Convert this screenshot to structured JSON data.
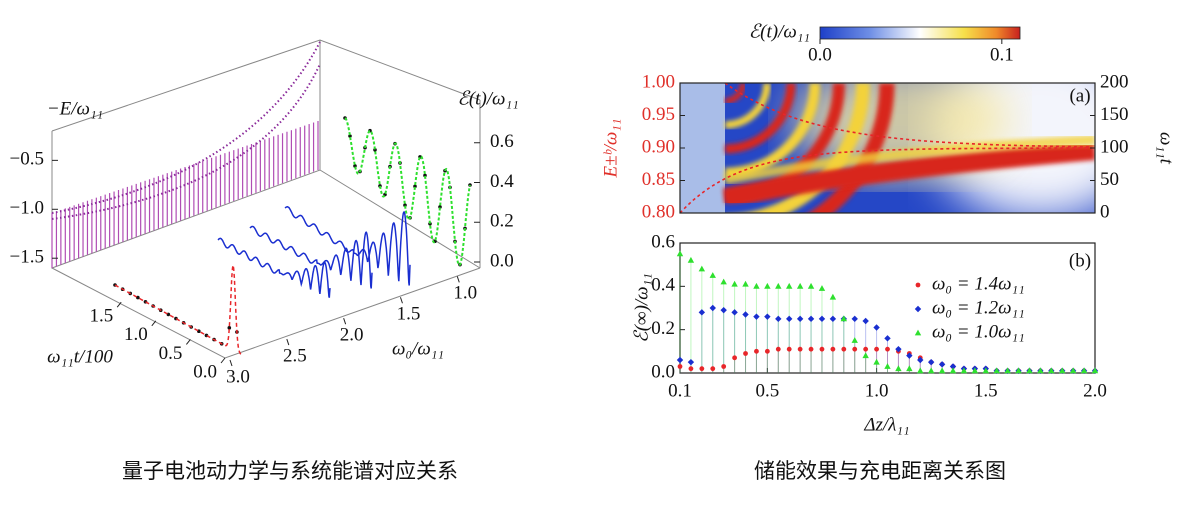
{
  "captions": [
    "量子电池动力学与系统能谱对应关系",
    "储能效果与充电距离关系图"
  ],
  "chart_data": [
    {
      "type": "surface-3d",
      "z_label": "−E/ω₁₁",
      "z2_label": "ℰ(t)/ω₁₁",
      "x_label": "ω₁₁t/100",
      "y_label": "ω₀/ω₁₁",
      "xlim": [
        0,
        2.5
      ],
      "xticks": [
        {
          "value": 0,
          "label": "0.0"
        },
        0.5,
        {
          "value": 1,
          "label": "1.0"
        },
        1.5
      ],
      "ylim": [
        0.8,
        3.0
      ],
      "yticks": [
        {
          "value": 1,
          "label": "1.0"
        },
        1.5,
        {
          "value": 2,
          "label": "2.0"
        },
        2.5,
        {
          "value": 3,
          "label": "3.0"
        }
      ],
      "zlim": [
        -1.6,
        -0.2
      ],
      "zticks": [
        {
          "value": -1.5,
          "label": "−1.5"
        },
        {
          "value": -1,
          "label": "−1.0"
        },
        {
          "value": -0.5,
          "label": "−0.5"
        }
      ],
      "z2lim": [
        0,
        0.8
      ],
      "z2ticks": [
        {
          "value": 0,
          "label": "0.0"
        },
        0.2,
        0.4,
        0.6
      ]
    },
    {
      "type": "heatmap",
      "panel_label": "(a)",
      "y_label": "E±ᵇ/ω₁₁",
      "y2_label": "ω₁₁t",
      "colorbar_label": "ℰ(t)/ω₁₁",
      "clim": [
        0,
        0.11
      ],
      "cticks": [
        {
          "value": 0,
          "label": "0.0"
        },
        0.1
      ],
      "ylim": [
        0.8,
        1.0
      ],
      "yticks": [
        {
          "value": 0.8,
          "label": "0.80"
        },
        0.85,
        {
          "value": 0.9,
          "label": "0.90"
        },
        0.95,
        {
          "value": 1,
          "label": "1.00"
        }
      ],
      "y2lim": [
        0,
        200
      ],
      "y2ticks": [
        0,
        50,
        100,
        150,
        200
      ]
    },
    {
      "type": "scatter",
      "panel_label": "(b)",
      "y_label": "ℰ(∞)/ω₁₁",
      "x_label": "Δz/λ₁₁",
      "xlim": [
        0.1,
        2.0
      ],
      "xticks": [
        0.1,
        0.5,
        {
          "value": 1,
          "label": "1.0"
        },
        1.5,
        {
          "value": 2,
          "label": "2.0"
        }
      ],
      "ylim": [
        0,
        0.6
      ],
      "yticks": [
        {
          "value": 0,
          "label": "0.0"
        },
        0.2,
        0.4,
        0.6
      ],
      "x": [
        0.1,
        0.15,
        0.2,
        0.25,
        0.3,
        0.35,
        0.4,
        0.45,
        0.5,
        0.55,
        0.6,
        0.65,
        0.7,
        0.75,
        0.8,
        0.85,
        0.9,
        0.95,
        1.0,
        1.05,
        1.1,
        1.15,
        1.2,
        1.25,
        1.3,
        1.35,
        1.4,
        1.45,
        1.5,
        1.55,
        1.6,
        1.65,
        1.7,
        1.75,
        1.8,
        1.85,
        1.9,
        1.95,
        2.0
      ],
      "series": [
        {
          "name": "ω₀ = 1.4ω₁₁",
          "color": "#e8262a",
          "marker": "circle",
          "values": [
            0.03,
            0.02,
            0.02,
            0.02,
            0.03,
            0.07,
            0.09,
            0.1,
            0.1,
            0.11,
            0.11,
            0.11,
            0.11,
            0.11,
            0.11,
            0.11,
            0.11,
            0.11,
            0.11,
            0.11,
            0.1,
            0.09,
            0.07,
            0.05,
            0.04,
            0.03,
            0.02,
            0.02,
            0.02,
            0.01,
            0.01,
            0.01,
            0.01,
            0.01,
            0.01,
            0.01,
            0.01,
            0.01,
            0.01
          ]
        },
        {
          "name": "ω₀ = 1.2ω₁₁",
          "color": "#1a2fd0",
          "marker": "diamond",
          "values": [
            0.06,
            0.05,
            0.28,
            0.3,
            0.29,
            0.28,
            0.27,
            0.26,
            0.26,
            0.25,
            0.25,
            0.25,
            0.25,
            0.25,
            0.25,
            0.25,
            0.25,
            0.24,
            0.21,
            0.16,
            0.11,
            0.08,
            0.06,
            0.05,
            0.04,
            0.03,
            0.02,
            0.02,
            0.02,
            0.01,
            0.01,
            0.01,
            0.01,
            0.01,
            0.01,
            0.01,
            0.01,
            0.01,
            0.01
          ]
        },
        {
          "name": "ω₀ = 1.0ω₁₁",
          "color": "#2ee02e",
          "marker": "triangle",
          "values": [
            0.55,
            0.52,
            0.48,
            0.45,
            0.42,
            0.41,
            0.41,
            0.4,
            0.4,
            0.4,
            0.4,
            0.4,
            0.4,
            0.39,
            0.35,
            0.25,
            0.15,
            0.08,
            0.05,
            0.03,
            0.02,
            0.02,
            0.01,
            0.01,
            0.01,
            0.01,
            0.01,
            0.01,
            0.01,
            0.01,
            0.01,
            0.01,
            0.01,
            0.01,
            0.01,
            0.01,
            0.01,
            0.01,
            0.01
          ]
        }
      ]
    }
  ]
}
